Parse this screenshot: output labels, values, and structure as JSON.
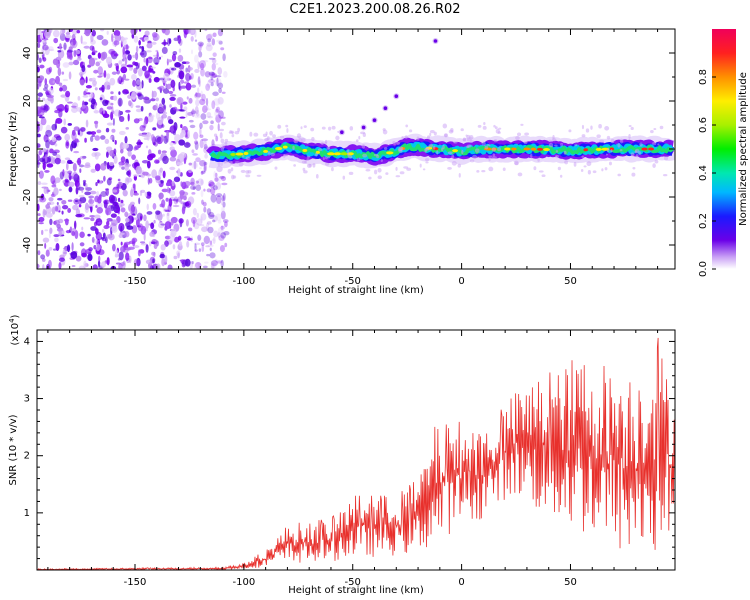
{
  "title": "C2E1.2023.200.08.26.R02",
  "chart_data": [
    {
      "type": "heatmap",
      "title": "C2E1.2023.200.08.26.R02",
      "xlabel": "Height of straight line (km)",
      "ylabel": "Frequency (Hz)",
      "xlim": [
        -195,
        98
      ],
      "ylim": [
        -50,
        50
      ],
      "xticks": [
        -150,
        -100,
        -50,
        0,
        50
      ],
      "yticks": [
        -40,
        -20,
        0,
        20,
        40
      ],
      "xtick_labels": [
        "-150",
        "-100",
        "-50",
        "0",
        "50"
      ],
      "ytick_labels": [
        "-40",
        "-20",
        "0",
        "20",
        "40"
      ],
      "colorbar": {
        "label": "Normalized spectral amplitude",
        "range": [
          0,
          1
        ],
        "ticks": [
          0.0,
          0.2,
          0.4,
          0.6,
          0.8
        ],
        "tick_labels": [
          "0.0",
          "0.2",
          "0.4",
          "0.6",
          "0.8"
        ]
      },
      "noise_region": {
        "x_from": -195,
        "x_to": -112
      },
      "ridge": [
        {
          "x": -110,
          "f": -2.5
        },
        {
          "x": -100,
          "f": -2
        },
        {
          "x": -90,
          "f": -1
        },
        {
          "x": -80,
          "f": 1
        },
        {
          "x": -70,
          "f": -1
        },
        {
          "x": -60,
          "f": -2
        },
        {
          "x": -50,
          "f": -2
        },
        {
          "x": -40,
          "f": -3
        },
        {
          "x": -30,
          "f": -1
        },
        {
          "x": -25,
          "f": 1
        },
        {
          "x": -10,
          "f": 0
        },
        {
          "x": 0,
          "f": -1
        },
        {
          "x": 10,
          "f": 0
        },
        {
          "x": 30,
          "f": 0
        },
        {
          "x": 50,
          "f": -0.5
        },
        {
          "x": 70,
          "f": 0
        },
        {
          "x": 95,
          "f": 0
        }
      ],
      "artifacts": [
        {
          "x": -12,
          "f": 45
        },
        {
          "x": -30,
          "f": 22
        },
        {
          "x": -35,
          "f": 17
        },
        {
          "x": -40,
          "f": 12
        },
        {
          "x": -45,
          "f": 9
        },
        {
          "x": -55,
          "f": 7
        }
      ]
    },
    {
      "type": "line",
      "xlabel": "Height of straight line (km)",
      "ylabel": "SNR (10 * v/v)",
      "y_scale_label": "(x10",
      "y_scale_exponent": "4",
      "y_scale_suffix": ")",
      "xlim": [
        -195,
        98
      ],
      "ylim": [
        0,
        4.2
      ],
      "xticks": [
        -150,
        -100,
        -50,
        0,
        50
      ],
      "yticks": [
        1,
        2,
        3,
        4
      ],
      "xtick_labels": [
        "-150",
        "-100",
        "-50",
        "0",
        "50"
      ],
      "ytick_labels": [
        "1",
        "2",
        "3",
        "4"
      ],
      "color": "#e8302c",
      "envelope": [
        {
          "x": -195,
          "min": 0.0,
          "max": 0.02
        },
        {
          "x": -110,
          "min": 0.0,
          "max": 0.05
        },
        {
          "x": -100,
          "min": 0.02,
          "max": 0.12
        },
        {
          "x": -90,
          "min": 0.05,
          "max": 0.35
        },
        {
          "x": -80,
          "min": 0.1,
          "max": 0.8
        },
        {
          "x": -60,
          "min": 0.15,
          "max": 0.9
        },
        {
          "x": -50,
          "min": 0.2,
          "max": 1.3
        },
        {
          "x": -30,
          "min": 0.25,
          "max": 1.3
        },
        {
          "x": -20,
          "min": 0.3,
          "max": 1.6
        },
        {
          "x": -13,
          "min": 0.4,
          "max": 2.5
        },
        {
          "x": 0,
          "min": 0.8,
          "max": 2.6
        },
        {
          "x": 10,
          "min": 0.9,
          "max": 2.5
        },
        {
          "x": 18,
          "min": 1.2,
          "max": 2.8
        },
        {
          "x": 25,
          "min": 1.3,
          "max": 3.1
        },
        {
          "x": 35,
          "min": 1.0,
          "max": 3.4
        },
        {
          "x": 45,
          "min": 0.8,
          "max": 3.5
        },
        {
          "x": 55,
          "min": 0.6,
          "max": 3.8
        },
        {
          "x": 70,
          "min": 0.3,
          "max": 3.6
        },
        {
          "x": 80,
          "min": 0.2,
          "max": 3.5
        },
        {
          "x": 90,
          "min": 0.2,
          "max": 4.1
        },
        {
          "x": 98,
          "min": 0.8,
          "max": 2.9
        }
      ]
    }
  ]
}
